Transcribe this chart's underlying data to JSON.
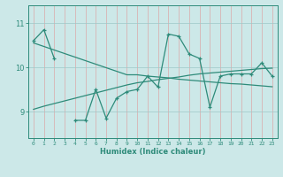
{
  "x": [
    0,
    1,
    2,
    3,
    4,
    5,
    6,
    7,
    8,
    9,
    10,
    11,
    12,
    13,
    14,
    15,
    16,
    17,
    18,
    19,
    20,
    21,
    22,
    23
  ],
  "line1_y": [
    10.6,
    10.85,
    10.2,
    null,
    8.8,
    8.8,
    9.5,
    8.85,
    9.3,
    9.45,
    9.5,
    9.8,
    9.55,
    10.75,
    10.7,
    10.3,
    10.2,
    9.1,
    9.8,
    9.85,
    9.85,
    9.85,
    10.1,
    9.8
  ],
  "trend1_y": [
    10.55,
    10.47,
    10.39,
    10.31,
    10.23,
    10.15,
    10.07,
    9.99,
    9.91,
    9.83,
    9.83,
    9.8,
    9.78,
    9.76,
    9.73,
    9.71,
    9.69,
    9.67,
    9.65,
    9.63,
    9.62,
    9.6,
    9.58,
    9.56
  ],
  "trend2_y": [
    9.05,
    9.12,
    9.18,
    9.24,
    9.3,
    9.36,
    9.42,
    9.48,
    9.54,
    9.6,
    9.65,
    9.68,
    9.72,
    9.75,
    9.78,
    9.82,
    9.85,
    9.87,
    9.89,
    9.91,
    9.93,
    9.95,
    9.97,
    9.98
  ],
  "line_color": "#2e8b7a",
  "bg_color": "#cce8e8",
  "vgrid_color": "#dba8a8",
  "hgrid_color": "#9ec8c8",
  "xlabel": "Humidex (Indice chaleur)",
  "ylabel_ticks": [
    9,
    10,
    11
  ],
  "ylim": [
    8.4,
    11.4
  ],
  "xlim": [
    -0.5,
    23.5
  ]
}
